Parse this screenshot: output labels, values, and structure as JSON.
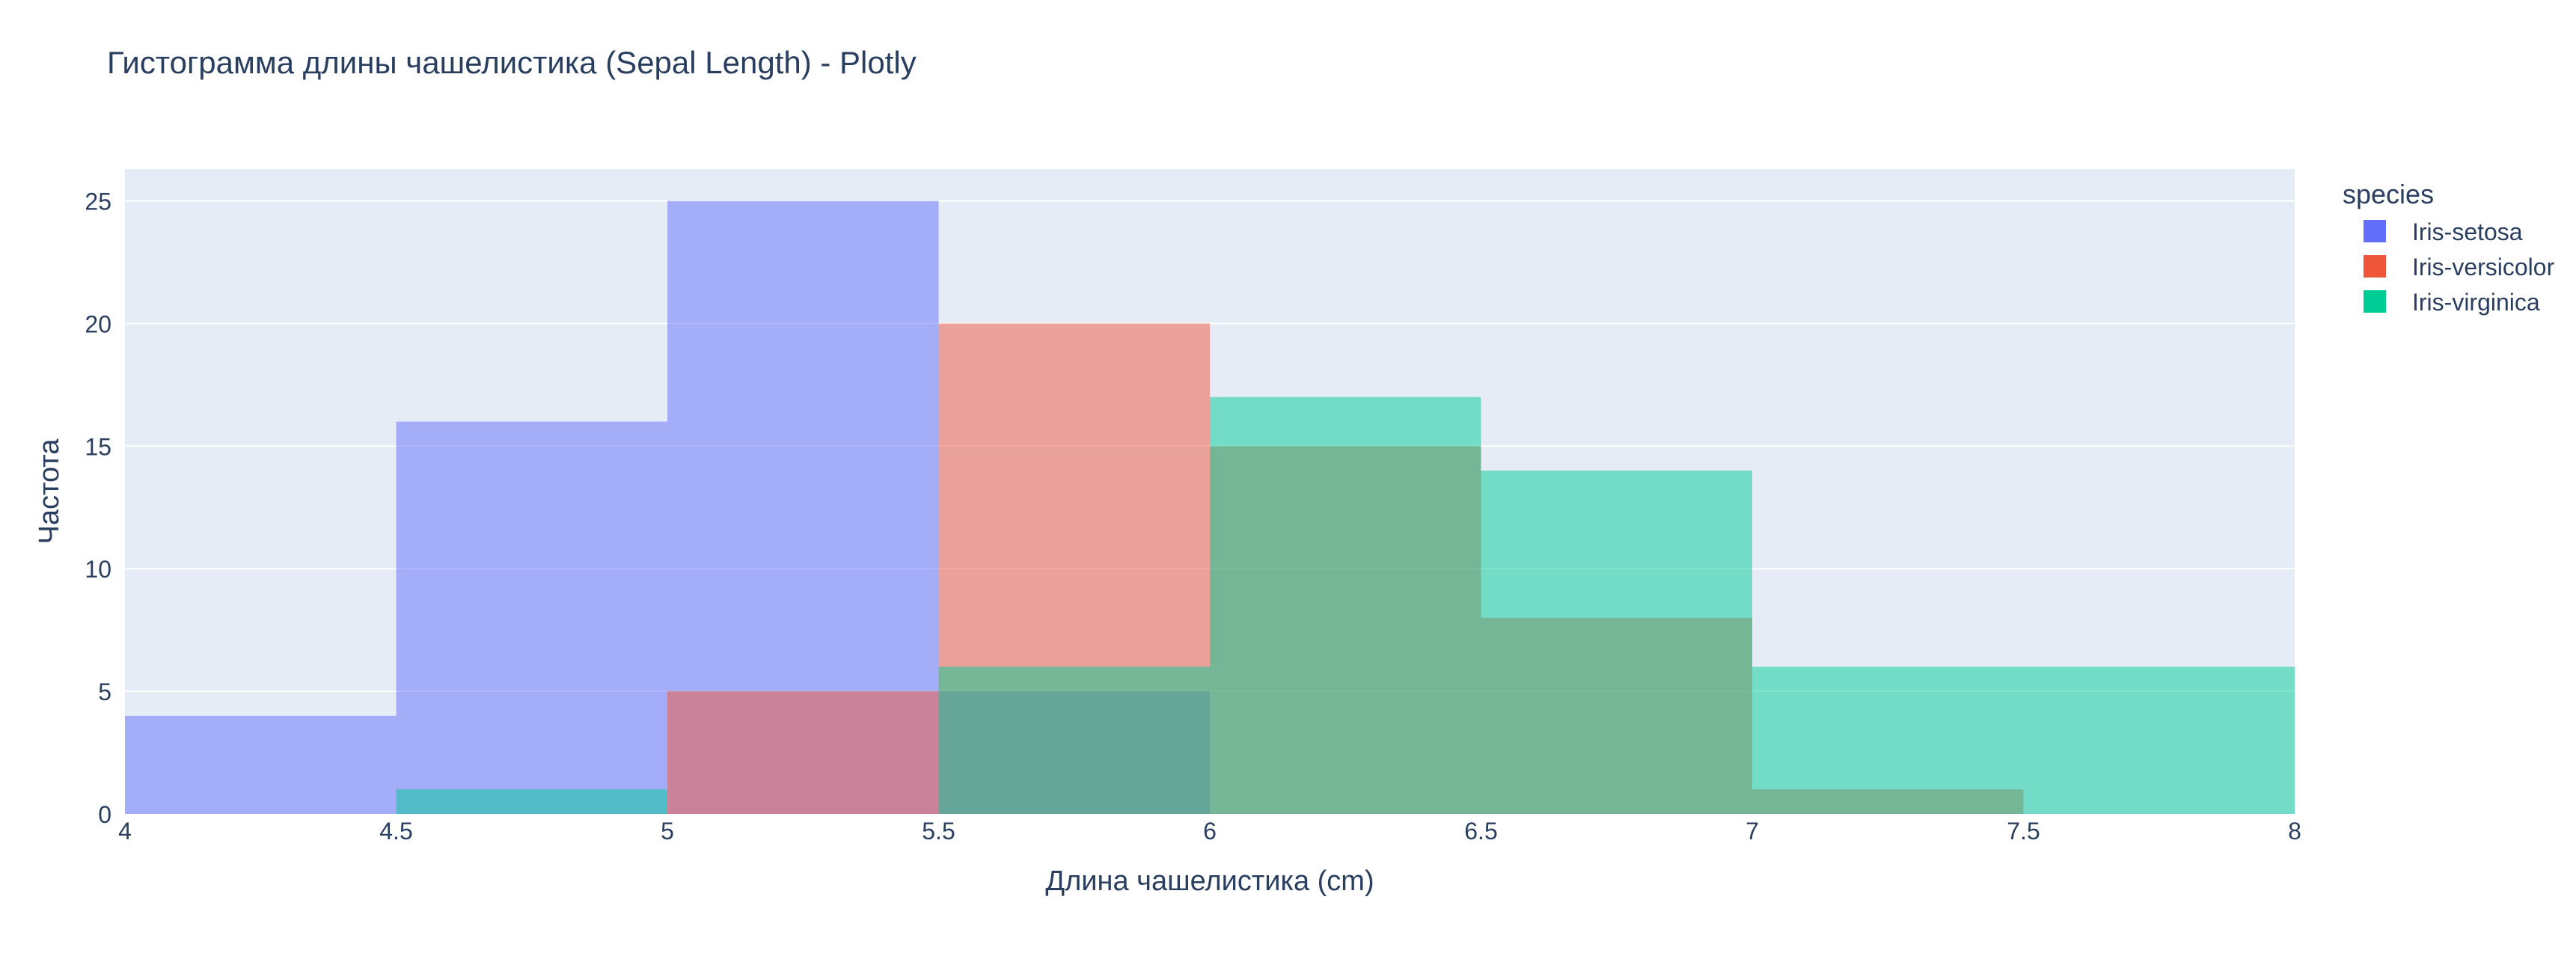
{
  "chart_data": {
    "type": "bar",
    "title": "Гистограмма длины чашелистика (Sepal Length) - Plotly",
    "xlabel": "Длина чашелистика (cm)",
    "ylabel": "Частота",
    "xlim": [
      4,
      8
    ],
    "ylim": [
      0,
      26.3
    ],
    "bin_size": 0.5,
    "bins": [
      4,
      4.5,
      5,
      5.5,
      6,
      6.5,
      7,
      7.5
    ],
    "x_ticks": [
      4,
      4.5,
      5,
      5.5,
      6,
      6.5,
      7,
      7.5,
      8
    ],
    "x_tick_labels": [
      "4",
      "4.5",
      "5",
      "5.5",
      "6",
      "6.5",
      "7",
      "7.5",
      "8"
    ],
    "y_ticks": [
      0,
      5,
      10,
      15,
      20,
      25
    ],
    "y_tick_labels": [
      "0",
      "5",
      "10",
      "15",
      "20",
      "25"
    ],
    "grid": true,
    "barmode": "overlay",
    "legend": {
      "title": "species",
      "position": "right"
    },
    "series": [
      {
        "name": "Iris-setosa",
        "color": "#636efa",
        "values": [
          4,
          16,
          25,
          5,
          0,
          0,
          0,
          0
        ]
      },
      {
        "name": "Iris-versicolor",
        "color": "#ef553b",
        "values": [
          0,
          0,
          5,
          20,
          15,
          8,
          1,
          0
        ]
      },
      {
        "name": "Iris-virginica",
        "color": "#00cc96",
        "values": [
          0,
          1,
          0,
          6,
          17,
          14,
          6,
          6
        ]
      }
    ],
    "colors": {
      "plot_background": "#e5ecf6",
      "grid": "#ffffff",
      "text": "#2a3f5f"
    }
  }
}
